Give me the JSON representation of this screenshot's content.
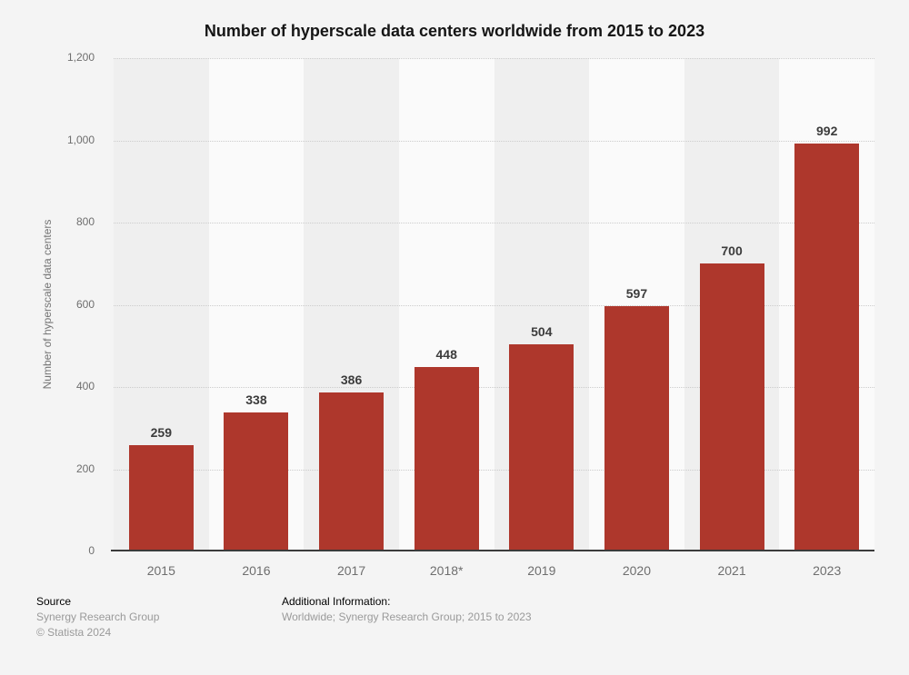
{
  "title": "Number of hyperscale data centers worldwide from 2015 to 2023",
  "chart_data": {
    "type": "bar",
    "categories": [
      "2015",
      "2016",
      "2017",
      "2018*",
      "2019",
      "2020",
      "2021",
      "2023"
    ],
    "values": [
      259,
      338,
      386,
      448,
      504,
      597,
      700,
      992
    ],
    "title": "Number of hyperscale data centers worldwide from 2015 to 2023",
    "xlabel": "",
    "ylabel": "Number of hyperscale data centers",
    "ylim": [
      0,
      1200
    ],
    "yticks": [
      0,
      200,
      400,
      600,
      800,
      1000,
      1200
    ],
    "ytick_labels": [
      "0",
      "200",
      "400",
      "600",
      "800",
      "1,000",
      "1,200"
    ],
    "grid": true,
    "legend": "none",
    "bar_color": "#ae372c",
    "band_colors": [
      "#efefef",
      "#fafafa"
    ],
    "gridline_color": "#cccccc",
    "axis_line_color": "#3b3b3b"
  },
  "footer": {
    "source_label": "Source",
    "source_name": "Synergy Research Group",
    "copyright": "© Statista 2024",
    "additional_label": "Additional Information:",
    "additional_text": "Worldwide; Synergy Research Group; 2015 to 2023"
  }
}
